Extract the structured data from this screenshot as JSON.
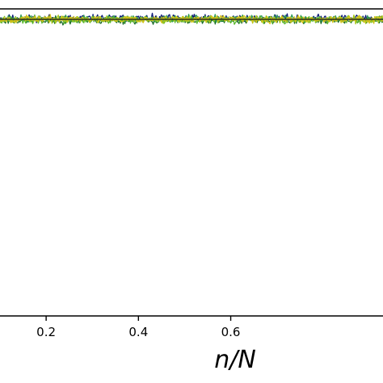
{
  "chart_data": {
    "type": "line",
    "title": "",
    "xlabel": "n/N",
    "ylabel": "",
    "x_ticks": [
      0.2,
      0.4,
      0.6
    ],
    "x_tick_labels": [
      "0.2",
      "0.4",
      "0.6"
    ],
    "xlim": [
      0.1,
      0.93
    ],
    "grid": false,
    "band": {
      "center": 0.966,
      "amplitude": 0.03
    },
    "series": [
      {
        "color": "#0d1a78",
        "offset": 0.004,
        "seed": 11
      },
      {
        "color": "#1a6b2a",
        "offset": -0.004,
        "seed": 23
      },
      {
        "color": "#2d9a55",
        "offset": 0.002,
        "seed": 37
      },
      {
        "color": "#5bb82e",
        "offset": -0.002,
        "seed": 41
      },
      {
        "color": "#a8c81e",
        "offset": 0.0,
        "seed": 53
      },
      {
        "color": "#d4c219",
        "offset": 0.001,
        "seed": 67
      }
    ],
    "mean_line": {
      "y": 0.966,
      "color": "#1f1f1f"
    }
  }
}
